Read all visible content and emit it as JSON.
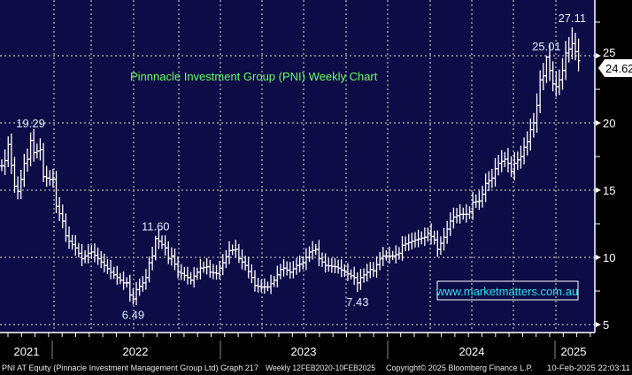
{
  "chart_data": {
    "type": "ohlc-bar",
    "title": "Pinnnacle Investment Group (PNI) Weekly Chart",
    "watermark": "www.marketmatters.com.au",
    "ylim": [
      4.8,
      29
    ],
    "y_ticks": [
      "5",
      "10",
      "15",
      "20",
      "25"
    ],
    "y_tick_values": [
      5,
      10,
      15,
      20,
      25
    ],
    "x_year_labels": [
      "2021",
      "2022",
      "2023",
      "2024",
      "2025"
    ],
    "last_price": "24.62",
    "last_price_value": 24.62,
    "grid": true,
    "weekly_closes": [
      [
        0,
        16.8
      ],
      [
        1,
        17.2
      ],
      [
        2,
        18.4
      ],
      [
        4,
        15.3
      ],
      [
        5,
        14.9
      ],
      [
        6,
        15.8
      ],
      [
        7,
        17
      ],
      [
        8,
        17.3
      ],
      [
        9,
        18.7
      ],
      [
        10,
        17.8
      ],
      [
        12,
        18
      ],
      [
        13,
        16
      ],
      [
        15,
        15.8
      ],
      [
        16,
        15.8
      ],
      [
        17,
        13.8
      ],
      [
        19,
        12.7
      ],
      [
        20,
        11.6
      ],
      [
        21,
        11.2
      ],
      [
        23,
        10.7
      ],
      [
        25,
        9.9
      ],
      [
        27,
        10.3
      ],
      [
        28,
        10.4
      ],
      [
        30,
        9.9
      ],
      [
        32,
        9.4
      ],
      [
        34,
        8.9
      ],
      [
        36,
        8.5
      ],
      [
        38,
        8.1
      ],
      [
        39,
        8.1
      ],
      [
        40,
        7.2
      ],
      [
        41,
        6.9
      ],
      [
        42,
        7.6
      ],
      [
        44,
        8.1
      ],
      [
        45,
        8.5
      ],
      [
        46,
        9.6
      ],
      [
        47,
        10.1
      ],
      [
        48,
        11.4
      ],
      [
        49,
        11.2
      ],
      [
        51,
        10.7
      ],
      [
        52,
        9.9
      ],
      [
        53,
        10.1
      ],
      [
        55,
        8.9
      ],
      [
        56,
        8.8
      ],
      [
        58,
        8.5
      ],
      [
        59,
        8.3
      ],
      [
        60,
        8.6
      ],
      [
        62,
        9.2
      ],
      [
        64,
        9.3
      ],
      [
        65,
        8.9
      ],
      [
        67,
        8.8
      ],
      [
        69,
        9.6
      ],
      [
        71,
        10.5
      ],
      [
        73,
        10.6
      ],
      [
        74,
        9.9
      ],
      [
        76,
        9.4
      ],
      [
        78,
        8.5
      ],
      [
        79,
        7.9
      ],
      [
        81,
        7.8
      ],
      [
        83,
        7.8
      ],
      [
        85,
        8.3
      ],
      [
        87,
        9.1
      ],
      [
        88,
        9.2
      ],
      [
        90,
        8.9
      ],
      [
        92,
        9.4
      ],
      [
        94,
        9.6
      ],
      [
        96,
        10.4
      ],
      [
        98,
        10.6
      ],
      [
        99,
        9.9
      ],
      [
        101,
        9.4
      ],
      [
        104,
        9.3
      ],
      [
        105,
        9.2
      ],
      [
        107,
        8.9
      ],
      [
        110,
        8.5
      ],
      [
        111,
        8.1
      ],
      [
        112,
        8.5
      ],
      [
        115,
        9.1
      ],
      [
        116,
        9.0
      ],
      [
        118,
        9.9
      ],
      [
        119,
        10.1
      ],
      [
        122,
        10.1
      ],
      [
        124,
        10.3
      ],
      [
        125,
        10.9
      ],
      [
        127,
        11.1
      ],
      [
        129,
        11.3
      ],
      [
        132,
        11.5
      ],
      [
        133,
        11.8
      ],
      [
        135,
        11.3
      ],
      [
        136,
        10.6
      ],
      [
        138,
        11.5
      ],
      [
        140,
        12.7
      ],
      [
        141,
        13.0
      ],
      [
        143,
        13.2
      ],
      [
        145,
        13.2
      ],
      [
        146,
        13.4
      ],
      [
        147,
        14.1
      ],
      [
        149,
        14.2
      ],
      [
        150,
        14.7
      ],
      [
        151,
        15.5
      ],
      [
        153,
        15.9
      ],
      [
        154,
        16.6
      ],
      [
        155,
        17.0
      ],
      [
        157,
        17.3
      ],
      [
        158,
        17.0
      ],
      [
        159,
        16.4
      ],
      [
        160,
        17
      ],
      [
        162,
        17.5
      ],
      [
        163,
        18.2
      ],
      [
        164,
        18.6
      ],
      [
        165,
        19.5
      ],
      [
        166,
        20
      ],
      [
        167,
        21.3
      ],
      [
        168,
        23.2
      ],
      [
        169,
        23.5
      ],
      [
        170,
        24.9
      ],
      [
        171,
        23.9
      ],
      [
        172,
        22.9
      ],
      [
        173,
        22.7
      ],
      [
        174,
        23.2
      ],
      [
        175,
        23.9
      ],
      [
        176,
        25.2
      ],
      [
        177,
        25.5
      ],
      [
        178,
        25.9
      ],
      [
        179,
        25.3
      ],
      [
        180,
        24.62
      ]
    ],
    "annotations": [
      {
        "label": "19.29",
        "value": 19.29,
        "week": 9,
        "pos": "above"
      },
      {
        "label": "11.60",
        "value": 11.6,
        "week": 48,
        "pos": "above"
      },
      {
        "label": "6.49",
        "value": 6.49,
        "week": 41,
        "pos": "below"
      },
      {
        "label": "7.43",
        "value": 7.43,
        "week": 111,
        "pos": "below"
      },
      {
        "label": "25.01",
        "value": 25.01,
        "week": 170,
        "pos": "above"
      },
      {
        "label": "27.11",
        "value": 27.11,
        "week": 178,
        "pos": "above"
      }
    ]
  },
  "footer": {
    "security": "PNI AT Equity (Pinnacle Investment Management Group Ltd) Graph 217",
    "range": "Weekly 12FEB2020-10FEB2025",
    "copyright": "Copyright© 2025 Bloomberg Finance L.P.",
    "timestamp": "10-Feb-2025 22:03:11"
  },
  "colors": {
    "plot_bg": "#0e0c46",
    "title": "#66ff66",
    "watermark": "#33e0f0",
    "annotation": "#d8ecff",
    "bars": "#ffffff"
  }
}
